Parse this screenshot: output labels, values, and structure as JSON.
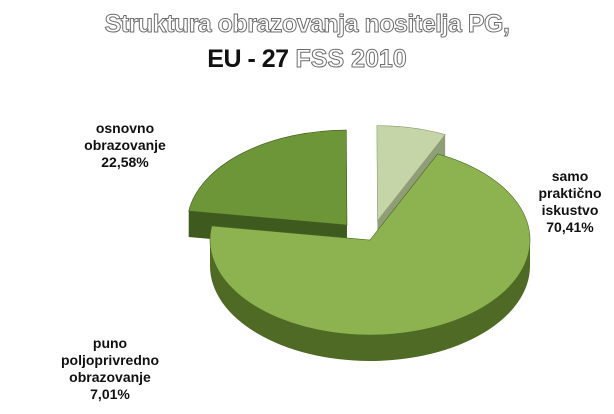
{
  "title": {
    "line1": "Struktura obrazovanja nositelja PG,",
    "line2_lead": "EU - 27",
    "line2_tail": " FSS 2010"
  },
  "chart_data": {
    "type": "pie",
    "title": "Struktura obrazovanja nositelja PG, EU - 27 FSS 2010",
    "three_d": true,
    "slices": [
      {
        "name": "samo praktično iskustvo",
        "label_lines": [
          "samo",
          "praktično",
          "iskustvo"
        ],
        "value_label": "70,41%",
        "value": 70.41,
        "top_color": "#8db350",
        "side_color": "#4e6a24",
        "exploded": false
      },
      {
        "name": "osnovno obrazovanje",
        "label_lines": [
          "osnovno",
          "obrazovanje"
        ],
        "value_label": "22,58%",
        "value": 22.58,
        "top_color": "#6c9638",
        "side_color": "#3f5a1e",
        "exploded": true
      },
      {
        "name": "puno poljoprivredno obrazovanje",
        "label_lines": [
          "puno",
          "poljoprivredno",
          "obrazovanje"
        ],
        "value_label": "7,01%",
        "value": 7.01,
        "top_color": "#c6d5a8",
        "side_color": "#8f9e76",
        "exploded": true
      }
    ]
  }
}
